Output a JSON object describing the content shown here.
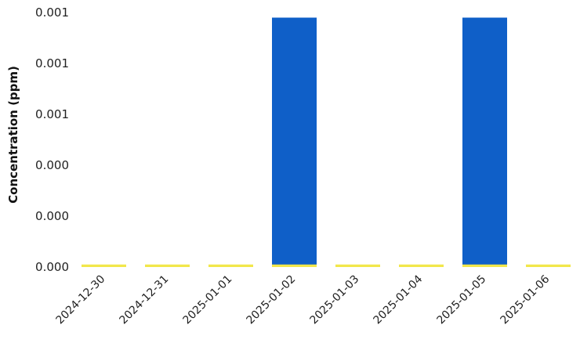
{
  "chart_data": {
    "type": "bar",
    "ylabel": "Concentration (ppm)",
    "xlabel": "",
    "categories": [
      "2024-12-30",
      "2024-12-31",
      "2025-01-01",
      "2025-01-02",
      "2025-01-03",
      "2025-01-04",
      "2025-01-05",
      "2025-01-06"
    ],
    "y_tick_labels": [
      "0.001",
      "0.001",
      "0.001",
      "0.000",
      "0.000",
      "0.000"
    ],
    "ylim": [
      0,
      0.001
    ],
    "series": [
      {
        "values": [
          0,
          0,
          0,
          0.00098,
          0,
          0,
          0.00098,
          0
        ],
        "color": "#0F5FC8"
      },
      {
        "values": [
          1e-05,
          1e-05,
          1e-05,
          1e-05,
          1e-05,
          1e-05,
          1e-05,
          1e-05
        ],
        "color": "#F2E74B"
      }
    ],
    "grid": false,
    "legend": "none"
  }
}
